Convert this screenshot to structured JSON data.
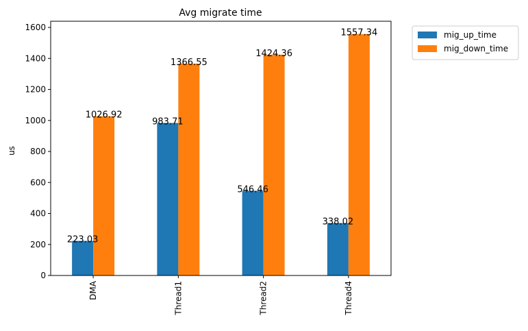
{
  "chart_data": {
    "type": "bar",
    "title": "Avg migrate time",
    "xlabel": "",
    "ylabel": "us",
    "categories": [
      "DMA",
      "Thread1",
      "Thread2",
      "Thread4"
    ],
    "series": [
      {
        "name": "mig_up_time",
        "values": [
          223.03,
          983.71,
          546.46,
          338.02
        ],
        "color": "#1f77b4"
      },
      {
        "name": "mig_down_time",
        "values": [
          1026.92,
          1366.55,
          1424.36,
          1557.34
        ],
        "color": "#ff7f0e"
      }
    ],
    "data_labels": [
      [
        "223.03",
        "983.71",
        "546.46",
        "338.02"
      ],
      [
        "1026.92",
        "1366.55",
        "1424.36",
        "1557.34"
      ]
    ],
    "ylim": [
      0,
      1640
    ],
    "yticks": [
      0,
      200,
      400,
      600,
      800,
      1000,
      1200,
      1400,
      1600
    ],
    "grid": false,
    "legend_position": "outside-top-right"
  }
}
